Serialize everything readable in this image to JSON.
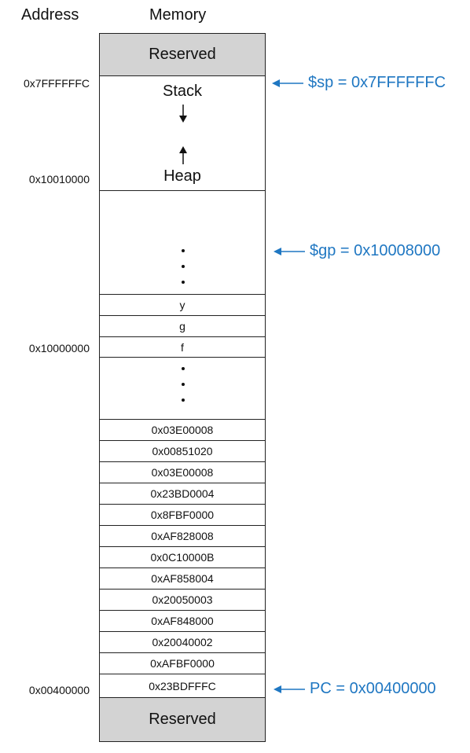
{
  "headers": {
    "address": "Address",
    "memory": "Memory"
  },
  "regions": {
    "reserved_top": "Reserved",
    "stack": "Stack",
    "heap": "Heap",
    "reserved_bottom": "Reserved"
  },
  "globals": [
    "y",
    "g",
    "f"
  ],
  "instructions": [
    "0x03E00008",
    "0x00851020",
    "0x03E00008",
    "0x23BD0004",
    "0x8FBF0000",
    "0xAF828008",
    "0x0C10000B",
    "0xAF858004",
    "0x20050003",
    "0xAF848000",
    "0x20040002",
    "0xAFBF0000",
    "0x23BDFFFC"
  ],
  "addresses": {
    "stack_top": "0x7FFFFFFC",
    "heap_base": "0x10010000",
    "data_base": "0x10000000",
    "text_base": "0x00400000"
  },
  "pointers": {
    "sp": "$sp = 0x7FFFFFFC",
    "gp": "$gp = 0x10008000",
    "pc": "PC = 0x00400000"
  },
  "colors": {
    "pointer": "#1f77c2",
    "reserved": "#d3d3d3"
  }
}
